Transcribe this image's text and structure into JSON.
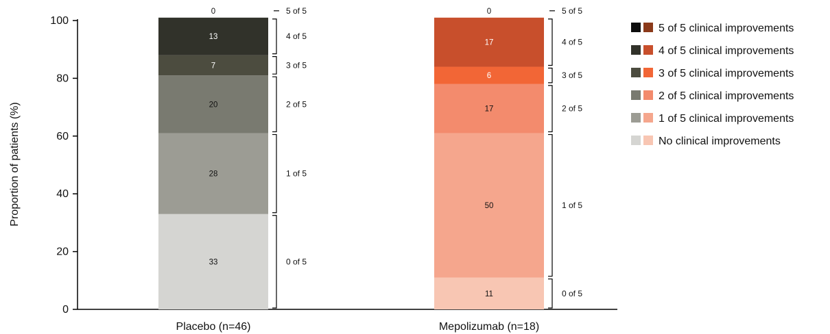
{
  "chart_data": {
    "type": "bar",
    "stacked": true,
    "ylabel": "Proportion of patients (%)",
    "xlabel": "",
    "ylim": [
      0,
      100
    ],
    "yticks": [
      0,
      20,
      40,
      60,
      80,
      100
    ],
    "categories": [
      "Placebo (n=46)",
      "Mepolizumab (n=18)"
    ],
    "series": [
      {
        "name": "No clinical improvements",
        "bracket_label": "0 of 5",
        "values": [
          33,
          11
        ],
        "colors": [
          "#d5d5d2",
          "#f8c6b3"
        ]
      },
      {
        "name": "1 of 5 clinical improvements",
        "bracket_label": "1 of 5",
        "values": [
          28,
          50
        ],
        "colors": [
          "#9c9c94",
          "#f5a68d"
        ]
      },
      {
        "name": "2 of 5 clinical improvements",
        "bracket_label": "2 of 5",
        "values": [
          20,
          17
        ],
        "colors": [
          "#797a70",
          "#f38b6d"
        ]
      },
      {
        "name": "3 of 5 clinical improvements",
        "bracket_label": "3 of 5",
        "values": [
          7,
          6
        ],
        "colors": [
          "#4c4c3f",
          "#f26636"
        ]
      },
      {
        "name": "4 of 5 clinical improvements",
        "bracket_label": "4 of 5",
        "values": [
          13,
          17
        ],
        "colors": [
          "#31322a",
          "#c84f2c"
        ]
      },
      {
        "name": "5 of 5 clinical improvements",
        "bracket_label": "5 of 5",
        "values": [
          0,
          0
        ],
        "colors": [
          "#0d0d0d",
          "#8b3a1a"
        ]
      }
    ],
    "legend_placement": "top-right",
    "grid": false
  }
}
